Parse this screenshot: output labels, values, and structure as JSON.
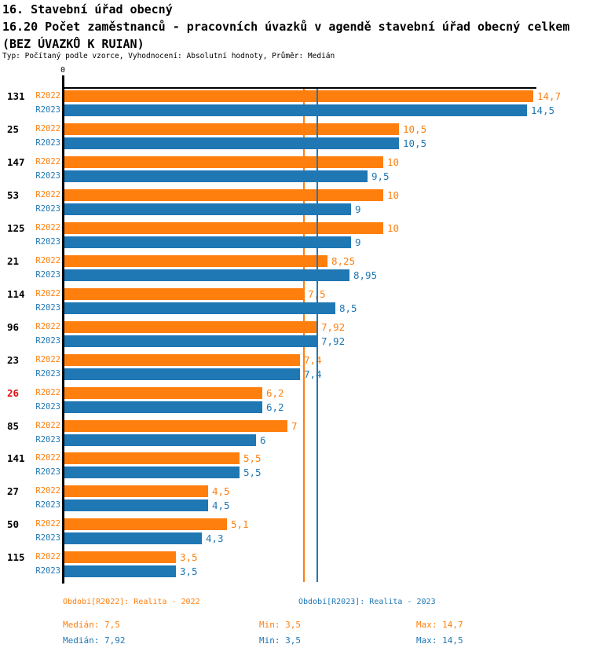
{
  "header": {
    "line1": "16. Stavební úřad obecný",
    "line2": "16.20 Počet zaměstnanců - pracovních úvazků v agendě stavební úřad obecný celkem",
    "line3": "(BEZ ÚVAZKŮ K RUIAN)",
    "subtitle": "Typ: Počítaný podle vzorce, Vyhodnocení: Absolutní hodnoty, Průměr: Medián"
  },
  "colors": {
    "r2022": "#ff7f0e",
    "r2023": "#1f77b4",
    "category_default": "#000000",
    "category_highlight": "#dd1111",
    "axis": "#000000"
  },
  "chart_data": {
    "type": "bar",
    "orientation": "horizontal",
    "title": "16.20 Počet zaměstnanců - pracovních úvazků v agendě stavební úřad obecný celkem (BEZ ÚVAZKŮ K RUIAN)",
    "xlabel": "",
    "ylabel": "",
    "xlim": [
      0,
      14.8
    ],
    "grid": false,
    "legend_position": "bottom",
    "zero_tick_label": "0",
    "categories": [
      "131",
      "25",
      "147",
      "53",
      "125",
      "21",
      "114",
      "96",
      "23",
      "26",
      "85",
      "141",
      "27",
      "50",
      "115"
    ],
    "highlighted_category": "26",
    "series": [
      {
        "name": "R2022",
        "legend": "Období[R2022]: Realita - 2022",
        "values": [
          14.7,
          10.5,
          10,
          10,
          10,
          8.25,
          7.5,
          7.92,
          7.4,
          6.2,
          7,
          5.5,
          4.5,
          5.1,
          3.5
        ],
        "value_labels": [
          "14,7",
          "10,5",
          "10",
          "10",
          "10",
          "8,25",
          "7,5",
          "7,92",
          "7,4",
          "6,2",
          "7",
          "5,5",
          "4,5",
          "5,1",
          "3,5"
        ],
        "median": 7.5
      },
      {
        "name": "R2023",
        "legend": "Období[R2023]: Realita - 2023",
        "values": [
          14.5,
          10.5,
          9.5,
          9,
          9,
          8.95,
          8.5,
          7.92,
          7.4,
          6.2,
          6,
          5.5,
          4.5,
          4.3,
          3.5
        ],
        "value_labels": [
          "14,5",
          "10,5",
          "9,5",
          "9",
          "9",
          "8,95",
          "8,5",
          "7,92",
          "7,4",
          "6,2",
          "6",
          "5,5",
          "4,5",
          "4,3",
          "3,5"
        ],
        "median": 7.92
      }
    ]
  },
  "footer": {
    "legend_r2022": "Období[R2022]: Realita - 2022",
    "legend_r2023": "Období[R2023]: Realita - 2023",
    "stats_r2022": {
      "median": "Medián: 7,5",
      "min": "Min: 3,5",
      "max": "Max: 14,7"
    },
    "stats_r2023": {
      "median": "Medián: 7,92",
      "min": "Min: 3,5",
      "max": "Max: 14,5"
    }
  }
}
